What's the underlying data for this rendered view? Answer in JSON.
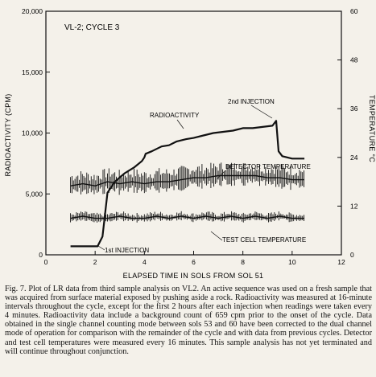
{
  "chart_data": {
    "type": "line",
    "panel_label": "VL-2; CYCLE 3",
    "xlabel": "ELAPSED TIME IN SOLS FROM SOL 51",
    "ylabel_left": "RADIOACTIVITY (CPM)",
    "ylabel_right": "TEMPERATURE °C",
    "xlim": [
      0,
      12
    ],
    "ylim_left": [
      0,
      20000
    ],
    "ylim_right": [
      0,
      60
    ],
    "x_ticks": [
      "0",
      "2",
      "4",
      "6",
      "8",
      "10",
      "12"
    ],
    "y_ticks_left": [
      "0",
      "5,000",
      "10,000",
      "15,000",
      "20,000"
    ],
    "y_ticks_right": [
      "0",
      "12",
      "24",
      "36",
      "48",
      "60"
    ],
    "grid": false,
    "annotations": {
      "radioactivity": "RADIOACTIVITY",
      "second_injection": "2nd INJECTION",
      "first_injection": "1st INJECTION",
      "detector_temperature": "DETECTOR TEMPERATURE",
      "test_cell_temperature": "TEST CELL TEMPERATURE"
    },
    "series": [
      {
        "key": "radioactivity",
        "axis": "left",
        "x": [
          1.0,
          2.1,
          2.3,
          2.5,
          2.8,
          3.2,
          3.6,
          3.9,
          4.0,
          4.05,
          4.3,
          4.7,
          5.0,
          5.3,
          5.7,
          6.0,
          6.4,
          6.8,
          7.2,
          7.6,
          8.0,
          8.4,
          8.8,
          9.2,
          9.35,
          9.45,
          9.6,
          10.0,
          10.5
        ],
        "y": [
          700,
          700,
          1500,
          5100,
          6000,
          6700,
          7200,
          7700,
          8000,
          8300,
          8500,
          8900,
          9000,
          9300,
          9500,
          9600,
          9800,
          10000,
          10100,
          10200,
          10400,
          10400,
          10500,
          10600,
          11000,
          8500,
          8100,
          7900,
          7900
        ]
      },
      {
        "key": "detector_temperature",
        "axis": "right",
        "x": [
          1.0,
          1.5,
          2.0,
          2.5,
          3.0,
          3.5,
          4.0,
          4.5,
          5.0,
          5.5,
          6.0,
          6.5,
          7.0,
          7.5,
          8.0,
          8.5,
          9.0,
          9.5,
          10.0,
          10.5
        ],
        "y": [
          17,
          17.5,
          17,
          18,
          17.5,
          18,
          17.5,
          18,
          18,
          18.5,
          19,
          19,
          19.5,
          19.5,
          19.5,
          19.5,
          19,
          19,
          18.5,
          18.5
        ]
      },
      {
        "key": "test_cell_temperature",
        "axis": "right",
        "x": [
          1.0,
          1.5,
          2.0,
          2.5,
          3.0,
          3.5,
          4.0,
          4.5,
          5.0,
          5.5,
          6.0,
          6.5,
          7.0,
          7.5,
          8.0,
          8.5,
          9.0,
          9.5,
          10.0,
          10.5
        ],
        "y": [
          9,
          9.5,
          9,
          9,
          9.5,
          9,
          9,
          9.5,
          9,
          9.5,
          9,
          9.5,
          9,
          9.5,
          9,
          9.5,
          9,
          9.5,
          9,
          9
        ]
      }
    ]
  },
  "caption": {
    "fig_label": "Fig. 7.",
    "text": "Plot of LR data from third sample analysis on VL2. An active sequence was used on a fresh sample that was acquired from surface material exposed by pushing aside a rock. Radioactivity was measured at 16-minute intervals throughout the cycle, except for the first 2 hours after each injection when readings were taken every 4 minutes. Radioactivity data include a background count of 659 cpm prior to the onset of the cycle. Data obtained in the single channel counting mode between sols 53 and 60 have been corrected to the dual channel mode of operation for comparison with the remainder of the cycle and with data from previous cycles. Detector and test cell temperatures were measured every 16 minutes. This sample analysis has not yet terminated and will continue throughout conjunction."
  }
}
